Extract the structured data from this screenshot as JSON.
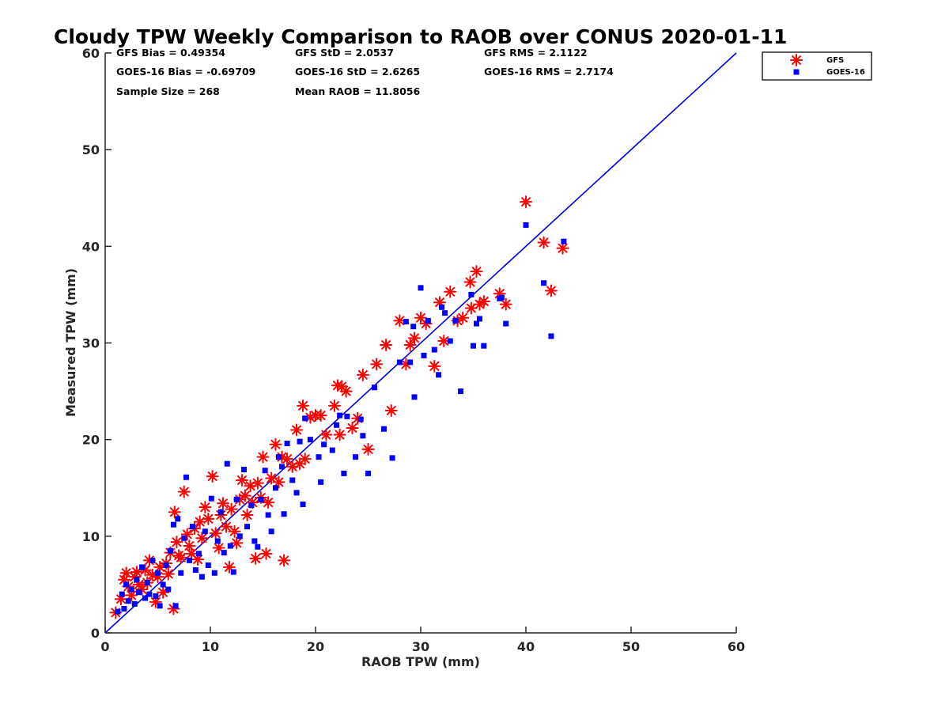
{
  "colors": {
    "gfs": "#ff0000",
    "goes": "#0000ff",
    "one_to_one_line": "#0000dd",
    "axis": "#262626"
  },
  "chart_data": {
    "type": "scatter",
    "title": "Cloudy TPW Weekly Comparison to RAOB over CONUS 2020-01-11",
    "xlabel": "RAOB TPW (mm)",
    "ylabel": "Measured TPW (mm)",
    "xlim": [
      0,
      60
    ],
    "ylim": [
      0,
      60
    ],
    "xticks": [
      "0",
      "10",
      "20",
      "30",
      "40",
      "50",
      "60"
    ],
    "yticks": [
      "0",
      "10",
      "20",
      "30",
      "40",
      "50",
      "60"
    ],
    "grid": false,
    "legend_placement": "top-right outside",
    "stats": {
      "gfs_bias": "GFS Bias = 0.49354",
      "gfs_std": "GFS StD = 2.0537",
      "gfs_rms": "GFS RMS = 2.1122",
      "goes_bias": "GOES-16 Bias = -0.69709",
      "goes_std": "GOES-16 StD = 2.6265",
      "goes_rms": "GOES-16 RMS = 2.7174",
      "sample_size": "Sample Size = 268",
      "mean_raob": "Mean RAOB = 11.8056"
    },
    "reference_line": {
      "from": [
        0,
        0
      ],
      "to": [
        60,
        60
      ]
    },
    "series": [
      {
        "name": "GFS",
        "marker": "asterisk",
        "points": [
          [
            1.0,
            2.1
          ],
          [
            1.5,
            3.5
          ],
          [
            1.8,
            5.5
          ],
          [
            2.0,
            6.2
          ],
          [
            2.2,
            4.8
          ],
          [
            2.5,
            3.9
          ],
          [
            2.8,
            5.8
          ],
          [
            3.0,
            6.3
          ],
          [
            3.2,
            5.0
          ],
          [
            3.5,
            4.5
          ],
          [
            3.8,
            6.5
          ],
          [
            4.0,
            5.2
          ],
          [
            4.2,
            7.5
          ],
          [
            4.5,
            6.0
          ],
          [
            4.8,
            3.2
          ],
          [
            5.0,
            5.8
          ],
          [
            5.2,
            6.8
          ],
          [
            5.5,
            4.2
          ],
          [
            5.8,
            7.2
          ],
          [
            6.0,
            6.1
          ],
          [
            6.2,
            8.3
          ],
          [
            6.5,
            2.5
          ],
          [
            6.6,
            12.5
          ],
          [
            6.8,
            9.4
          ],
          [
            7.0,
            8.0
          ],
          [
            7.2,
            7.8
          ],
          [
            7.5,
            14.6
          ],
          [
            7.8,
            10.2
          ],
          [
            8.0,
            9.0
          ],
          [
            8.2,
            8.2
          ],
          [
            8.5,
            10.8
          ],
          [
            8.8,
            7.6
          ],
          [
            9.0,
            11.5
          ],
          [
            9.2,
            9.8
          ],
          [
            9.5,
            13.0
          ],
          [
            9.8,
            11.8
          ],
          [
            10.2,
            16.2
          ],
          [
            10.5,
            10.3
          ],
          [
            10.8,
            8.8
          ],
          [
            11.0,
            12.2
          ],
          [
            11.2,
            13.4
          ],
          [
            11.5,
            11.0
          ],
          [
            11.8,
            6.8
          ],
          [
            12.0,
            12.8
          ],
          [
            12.3,
            10.5
          ],
          [
            12.5,
            9.3
          ],
          [
            12.8,
            13.8
          ],
          [
            13.0,
            15.8
          ],
          [
            13.3,
            14.2
          ],
          [
            13.5,
            12.2
          ],
          [
            13.8,
            15.2
          ],
          [
            14.0,
            13.5
          ],
          [
            14.3,
            7.7
          ],
          [
            14.5,
            15.5
          ],
          [
            14.8,
            14.0
          ],
          [
            15.0,
            18.2
          ],
          [
            15.3,
            8.2
          ],
          [
            15.5,
            13.5
          ],
          [
            15.8,
            16.0
          ],
          [
            16.2,
            19.5
          ],
          [
            16.5,
            15.6
          ],
          [
            16.8,
            18.2
          ],
          [
            17.0,
            7.5
          ],
          [
            17.3,
            18.0
          ],
          [
            17.8,
            17.2
          ],
          [
            18.2,
            21.0
          ],
          [
            18.5,
            17.5
          ],
          [
            18.8,
            23.5
          ],
          [
            19.0,
            18.0
          ],
          [
            19.5,
            22.3
          ],
          [
            20.0,
            22.5
          ],
          [
            20.5,
            22.5
          ],
          [
            21.0,
            20.5
          ],
          [
            21.8,
            23.5
          ],
          [
            22.1,
            25.6
          ],
          [
            22.3,
            20.5
          ],
          [
            22.5,
            25.5
          ],
          [
            22.9,
            25.0
          ],
          [
            23.5,
            21.2
          ],
          [
            24.0,
            22.2
          ],
          [
            24.5,
            26.7
          ],
          [
            25.0,
            19.0
          ],
          [
            25.8,
            27.8
          ],
          [
            26.7,
            29.8
          ],
          [
            27.2,
            23.0
          ],
          [
            28.0,
            32.3
          ],
          [
            28.6,
            27.8
          ],
          [
            29.0,
            29.8
          ],
          [
            29.4,
            30.5
          ],
          [
            30.0,
            32.6
          ],
          [
            30.5,
            32.0
          ],
          [
            31.3,
            27.6
          ],
          [
            31.8,
            34.2
          ],
          [
            32.2,
            30.2
          ],
          [
            32.8,
            35.3
          ],
          [
            33.5,
            32.3
          ],
          [
            34.0,
            32.6
          ],
          [
            34.7,
            36.3
          ],
          [
            34.8,
            33.6
          ],
          [
            35.3,
            37.4
          ],
          [
            35.6,
            34.0
          ],
          [
            36.0,
            34.3
          ],
          [
            37.5,
            35.1
          ],
          [
            38.1,
            34.0
          ],
          [
            40.0,
            44.6
          ],
          [
            41.7,
            40.4
          ],
          [
            42.4,
            35.4
          ],
          [
            43.5,
            39.8
          ]
        ]
      },
      {
        "name": "GOES-16",
        "marker": "square",
        "points": [
          [
            1.2,
            2.2
          ],
          [
            1.6,
            4.0
          ],
          [
            1.8,
            2.5
          ],
          [
            2.0,
            5.0
          ],
          [
            2.2,
            3.3
          ],
          [
            2.5,
            4.5
          ],
          [
            2.8,
            3.0
          ],
          [
            3.0,
            5.5
          ],
          [
            3.2,
            4.2
          ],
          [
            3.5,
            6.8
          ],
          [
            3.8,
            3.6
          ],
          [
            4.0,
            5.2
          ],
          [
            4.2,
            4.0
          ],
          [
            4.5,
            7.5
          ],
          [
            4.8,
            3.8
          ],
          [
            5.0,
            6.2
          ],
          [
            5.2,
            2.8
          ],
          [
            5.5,
            5.0
          ],
          [
            5.8,
            7.0
          ],
          [
            6.0,
            4.5
          ],
          [
            6.2,
            8.5
          ],
          [
            6.5,
            11.2
          ],
          [
            6.7,
            2.8
          ],
          [
            6.9,
            11.8
          ],
          [
            7.2,
            6.2
          ],
          [
            7.5,
            9.8
          ],
          [
            7.7,
            16.1
          ],
          [
            8.0,
            7.5
          ],
          [
            8.3,
            11.0
          ],
          [
            8.6,
            6.5
          ],
          [
            8.9,
            8.2
          ],
          [
            9.2,
            5.8
          ],
          [
            9.5,
            10.5
          ],
          [
            9.8,
            7.0
          ],
          [
            10.1,
            13.9
          ],
          [
            10.4,
            6.2
          ],
          [
            10.7,
            9.5
          ],
          [
            11.0,
            12.5
          ],
          [
            11.3,
            8.3
          ],
          [
            11.6,
            17.5
          ],
          [
            11.9,
            9.0
          ],
          [
            12.2,
            6.3
          ],
          [
            12.5,
            13.8
          ],
          [
            12.8,
            10.0
          ],
          [
            13.2,
            16.9
          ],
          [
            13.5,
            11.0
          ],
          [
            13.9,
            13.2
          ],
          [
            14.2,
            9.5
          ],
          [
            14.5,
            8.9
          ],
          [
            14.8,
            13.8
          ],
          [
            15.2,
            16.8
          ],
          [
            15.5,
            12.2
          ],
          [
            15.8,
            10.5
          ],
          [
            16.2,
            15.0
          ],
          [
            16.5,
            18.2
          ],
          [
            16.8,
            17.2
          ],
          [
            17.0,
            12.3
          ],
          [
            17.3,
            19.6
          ],
          [
            17.8,
            15.8
          ],
          [
            18.2,
            14.5
          ],
          [
            18.5,
            19.8
          ],
          [
            18.8,
            13.3
          ],
          [
            19.0,
            22.2
          ],
          [
            19.5,
            20.0
          ],
          [
            20.3,
            18.2
          ],
          [
            20.5,
            15.6
          ],
          [
            20.8,
            19.5
          ],
          [
            21.6,
            18.9
          ],
          [
            22.0,
            21.5
          ],
          [
            22.3,
            22.5
          ],
          [
            22.7,
            16.5
          ],
          [
            23.0,
            22.4
          ],
          [
            23.8,
            18.2
          ],
          [
            24.3,
            22.1
          ],
          [
            24.5,
            20.4
          ],
          [
            25.0,
            16.5
          ],
          [
            25.6,
            25.4
          ],
          [
            26.5,
            21.1
          ],
          [
            27.3,
            18.1
          ],
          [
            28.0,
            28.0
          ],
          [
            28.6,
            32.2
          ],
          [
            29.0,
            28.0
          ],
          [
            29.3,
            31.7
          ],
          [
            29.4,
            24.4
          ],
          [
            30.0,
            35.7
          ],
          [
            30.3,
            28.7
          ],
          [
            30.7,
            32.3
          ],
          [
            31.3,
            29.3
          ],
          [
            31.7,
            26.7
          ],
          [
            32.0,
            33.7
          ],
          [
            32.3,
            33.1
          ],
          [
            32.8,
            30.2
          ],
          [
            33.3,
            32.3
          ],
          [
            33.8,
            25.0
          ],
          [
            34.8,
            35.0
          ],
          [
            35.0,
            29.7
          ],
          [
            35.3,
            32.0
          ],
          [
            35.6,
            32.5
          ],
          [
            36.0,
            29.7
          ],
          [
            37.5,
            34.6
          ],
          [
            37.7,
            34.7
          ],
          [
            38.1,
            32.0
          ],
          [
            40.0,
            42.2
          ],
          [
            41.7,
            36.2
          ],
          [
            42.4,
            30.7
          ],
          [
            43.6,
            40.5
          ]
        ]
      }
    ]
  }
}
